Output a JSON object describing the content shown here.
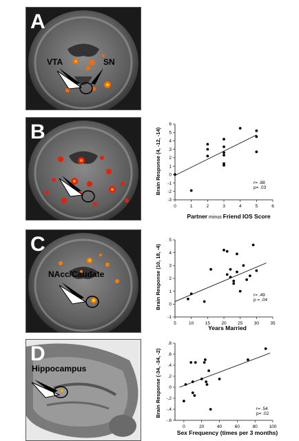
{
  "panels": [
    {
      "letter": "A",
      "labels": [
        "VTA",
        "SN"
      ]
    },
    {
      "letter": "B"
    },
    {
      "letter": "C",
      "labels": [
        "NAcc/Caudate"
      ]
    },
    {
      "letter": "D",
      "labels": [
        "Hippocampus"
      ]
    }
  ],
  "chart_data": [
    {
      "type": "scatter",
      "ylabel": "Brain Response (4, -12, -14)",
      "xlabel_parts": [
        "Partner",
        " minus ",
        "Friend IOS Score"
      ],
      "xlim": [
        0,
        6
      ],
      "ylim": [
        -3,
        6
      ],
      "xticks": [
        0,
        1,
        2,
        3,
        4,
        5,
        6
      ],
      "yticks": [
        -3,
        -2,
        -1,
        0,
        1,
        2,
        3,
        4,
        5,
        6
      ],
      "points": [
        [
          0,
          0
        ],
        [
          1,
          -1.9
        ],
        [
          2,
          2.2
        ],
        [
          2,
          3
        ],
        [
          2,
          3.6
        ],
        [
          3,
          1.1
        ],
        [
          3,
          1.3
        ],
        [
          3,
          2.3
        ],
        [
          3,
          2.6
        ],
        [
          3,
          3.3
        ],
        [
          3,
          4.2
        ],
        [
          4,
          5.5
        ],
        [
          5,
          2.7
        ],
        [
          5,
          4.5
        ],
        [
          5,
          5.2
        ]
      ],
      "fit": [
        [
          0,
          -0.1
        ],
        [
          5,
          4.7
        ]
      ],
      "stats": [
        "r= .88",
        "p= .03"
      ]
    },
    {
      "type": "scatter",
      "ylabel": "Brain Response (10, 18, -4)",
      "xlabel": "Years Married",
      "xlim": [
        5,
        35
      ],
      "ylim": [
        -1,
        5
      ],
      "xticks": [
        5,
        10,
        15,
        20,
        25,
        30,
        35
      ],
      "yticks": [
        -1,
        0,
        1,
        2,
        3,
        4,
        5
      ],
      "points": [
        [
          9,
          0.4
        ],
        [
          10,
          0.8
        ],
        [
          14,
          0.2
        ],
        [
          16,
          2.7
        ],
        [
          20,
          4.2
        ],
        [
          21,
          4.1
        ],
        [
          21,
          2.3
        ],
        [
          22,
          2.1
        ],
        [
          22,
          2.7
        ],
        [
          23,
          1.8
        ],
        [
          23,
          1.6
        ],
        [
          24,
          3.9
        ],
        [
          24,
          2.5
        ],
        [
          25,
          1.0
        ],
        [
          26,
          3.0
        ],
        [
          27,
          1.9
        ],
        [
          28,
          2.2
        ],
        [
          29,
          4.6
        ],
        [
          30,
          2.6
        ]
      ],
      "fit": [
        [
          5,
          0.2
        ],
        [
          33,
          3.2
        ]
      ],
      "stats": [
        "r= .49",
        "p = .04"
      ]
    },
    {
      "type": "scatter",
      "ylabel": "Brain Response (-34, -34, -2)",
      "xlabel": "Sex Frequency (times per 3 months)",
      "xlim": [
        -10,
        100
      ],
      "ylim": [
        -0.6,
        0.8
      ],
      "xticks": [
        0,
        20,
        40,
        60,
        80,
        100
      ],
      "yticks": [
        -0.6,
        -0.4,
        -0.2,
        0,
        0.2,
        0.4,
        0.6,
        0.8
      ],
      "points": [
        [
          0,
          -0.25
        ],
        [
          2,
          0.05
        ],
        [
          8,
          0.45
        ],
        [
          10,
          -0.1
        ],
        [
          10,
          0.1
        ],
        [
          12,
          -0.15
        ],
        [
          13,
          0.45
        ],
        [
          20,
          0.15
        ],
        [
          23,
          0.45
        ],
        [
          24,
          0.5
        ],
        [
          25,
          0.1
        ],
        [
          26,
          0.05
        ],
        [
          28,
          0.3
        ],
        [
          30,
          -0.4
        ],
        [
          40,
          0.15
        ],
        [
          72,
          0.5
        ],
        [
          92,
          0.7
        ]
      ],
      "fit": [
        [
          -5,
          0.0
        ],
        [
          97,
          0.62
        ]
      ],
      "stats": [
        "r= .54",
        "p= .02"
      ]
    }
  ]
}
